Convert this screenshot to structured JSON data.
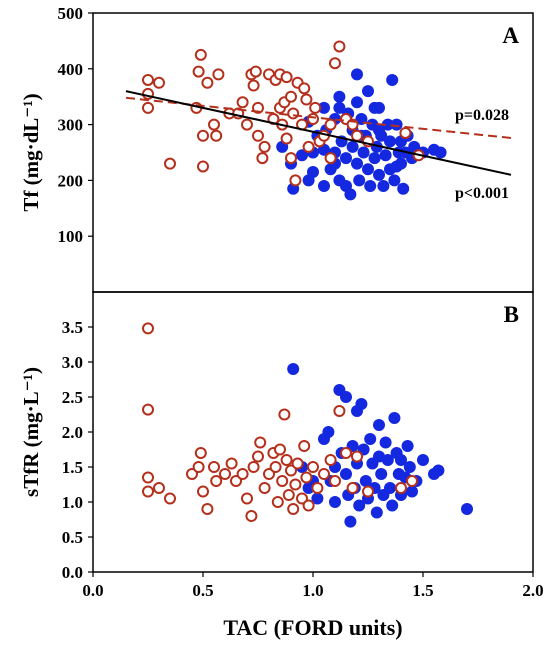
{
  "chart_data": [
    {
      "type": "scatter",
      "panel_label": "A",
      "ylabel": "Tf  (mg·dL⁻¹)",
      "xlim": [
        0.0,
        2.0
      ],
      "ylim": [
        0,
        500
      ],
      "y_ticks": [
        100,
        200,
        300,
        400,
        500
      ],
      "series": [
        {
          "color": "#1428e0",
          "marker": "filled-circle",
          "points": [
            [
              0.86,
              260
            ],
            [
              0.9,
              230
            ],
            [
              0.91,
              185
            ],
            [
              0.95,
              245
            ],
            [
              0.98,
              200
            ],
            [
              0.98,
              305
            ],
            [
              1.0,
              215
            ],
            [
              1.0,
              250
            ],
            [
              1.02,
              280
            ],
            [
              1.05,
              190
            ],
            [
              1.05,
              255
            ],
            [
              1.06,
              290
            ],
            [
              1.08,
              220
            ],
            [
              1.1,
              250
            ],
            [
              1.1,
              310
            ],
            [
              1.12,
              350
            ],
            [
              1.12,
              200
            ],
            [
              1.13,
              270
            ],
            [
              1.15,
              190
            ],
            [
              1.15,
              240
            ],
            [
              1.16,
              320
            ],
            [
              1.17,
              175
            ],
            [
              1.18,
              290
            ],
            [
              1.18,
              260
            ],
            [
              1.2,
              230
            ],
            [
              1.2,
              390
            ],
            [
              1.21,
              200
            ],
            [
              1.22,
              310
            ],
            [
              1.23,
              250
            ],
            [
              1.24,
              280
            ],
            [
              1.25,
              360
            ],
            [
              1.25,
              220
            ],
            [
              1.26,
              190
            ],
            [
              1.27,
              300
            ],
            [
              1.28,
              240
            ],
            [
              1.29,
              260
            ],
            [
              1.3,
              210
            ],
            [
              1.3,
              330
            ],
            [
              1.31,
              280
            ],
            [
              1.32,
              190
            ],
            [
              1.33,
              245
            ],
            [
              1.34,
              300
            ],
            [
              1.35,
              220
            ],
            [
              1.35,
              270
            ],
            [
              1.36,
              380
            ],
            [
              1.37,
              200
            ],
            [
              1.38,
              300
            ],
            [
              1.39,
              250
            ],
            [
              1.4,
              230
            ],
            [
              1.4,
              270
            ],
            [
              1.41,
              185
            ],
            [
              1.42,
              250
            ],
            [
              1.43,
              280
            ],
            [
              1.45,
              240
            ],
            [
              1.46,
              260
            ],
            [
              1.5,
              250
            ],
            [
              1.55,
              255
            ],
            [
              1.58,
              250
            ],
            [
              1.05,
              330
            ],
            [
              1.12,
              330
            ],
            [
              1.2,
              340
            ],
            [
              1.28,
              330
            ],
            [
              1.1,
              230
            ],
            [
              1.22,
              280
            ],
            [
              1.3,
              290
            ],
            [
              1.38,
              225
            ]
          ]
        },
        {
          "color": "#b5301c",
          "marker": "open-circle",
          "points": [
            [
              0.25,
              380
            ],
            [
              0.25,
              355
            ],
            [
              0.25,
              330
            ],
            [
              0.3,
              375
            ],
            [
              0.35,
              230
            ],
            [
              0.47,
              330
            ],
            [
              0.48,
              395
            ],
            [
              0.49,
              425
            ],
            [
              0.5,
              280
            ],
            [
              0.5,
              225
            ],
            [
              0.52,
              375
            ],
            [
              0.55,
              300
            ],
            [
              0.56,
              280
            ],
            [
              0.57,
              390
            ],
            [
              0.62,
              320
            ],
            [
              0.66,
              320
            ],
            [
              0.68,
              340
            ],
            [
              0.7,
              300
            ],
            [
              0.72,
              390
            ],
            [
              0.73,
              370
            ],
            [
              0.74,
              395
            ],
            [
              0.75,
              280
            ],
            [
              0.75,
              330
            ],
            [
              0.77,
              240
            ],
            [
              0.78,
              260
            ],
            [
              0.8,
              390
            ],
            [
              0.82,
              310
            ],
            [
              0.83,
              380
            ],
            [
              0.85,
              390
            ],
            [
              0.85,
              330
            ],
            [
              0.86,
              300
            ],
            [
              0.87,
              340
            ],
            [
              0.88,
              275
            ],
            [
              0.88,
              385
            ],
            [
              0.9,
              350
            ],
            [
              0.9,
              240
            ],
            [
              0.91,
              320
            ],
            [
              0.92,
              200
            ],
            [
              0.93,
              375
            ],
            [
              0.95,
              300
            ],
            [
              0.96,
              365
            ],
            [
              0.97,
              345
            ],
            [
              0.98,
              260
            ],
            [
              1.0,
              310
            ],
            [
              1.01,
              330
            ],
            [
              1.03,
              270
            ],
            [
              1.05,
              280
            ],
            [
              1.08,
              300
            ],
            [
              1.08,
              240
            ],
            [
              1.1,
              410
            ],
            [
              1.12,
              440
            ],
            [
              1.15,
              310
            ],
            [
              1.18,
              300
            ],
            [
              1.2,
              280
            ],
            [
              1.25,
              270
            ],
            [
              1.42,
              285
            ],
            [
              1.48,
              245
            ]
          ]
        }
      ],
      "fits": [
        {
          "label": "p=0.028",
          "color": "#b5301c",
          "style": "dashed",
          "x": [
            0.15,
            1.9
          ],
          "y": [
            348,
            276
          ]
        },
        {
          "label": "p<0.001",
          "color": "#000000",
          "style": "solid",
          "x": [
            0.15,
            1.9
          ],
          "y": [
            360,
            210
          ]
        }
      ]
    },
    {
      "type": "scatter",
      "panel_label": "B",
      "ylabel": "sTfR  (mg·L⁻¹)",
      "xlabel": "TAC (FORD units)",
      "xlim": [
        0.0,
        2.0
      ],
      "ylim": [
        0.0,
        4.0
      ],
      "x_ticks": [
        0.0,
        0.5,
        1.0,
        1.5,
        2.0
      ],
      "y_ticks": [
        0.0,
        0.5,
        1.0,
        1.5,
        2.0,
        2.5,
        3.0,
        3.5
      ],
      "series": [
        {
          "color": "#1428e0",
          "marker": "filled-circle",
          "points": [
            [
              0.91,
              2.9
            ],
            [
              0.95,
              1.5
            ],
            [
              0.98,
              1.2
            ],
            [
              1.0,
              1.3
            ],
            [
              1.02,
              1.05
            ],
            [
              1.05,
              1.9
            ],
            [
              1.07,
              2.0
            ],
            [
              1.08,
              1.3
            ],
            [
              1.1,
              1.5
            ],
            [
              1.1,
              1.0
            ],
            [
              1.12,
              2.6
            ],
            [
              1.13,
              1.7
            ],
            [
              1.15,
              2.5
            ],
            [
              1.15,
              1.4
            ],
            [
              1.16,
              1.1
            ],
            [
              1.17,
              0.72
            ],
            [
              1.18,
              1.8
            ],
            [
              1.19,
              1.2
            ],
            [
              1.2,
              2.3
            ],
            [
              1.2,
              1.55
            ],
            [
              1.21,
              0.95
            ],
            [
              1.22,
              2.4
            ],
            [
              1.23,
              1.75
            ],
            [
              1.24,
              1.3
            ],
            [
              1.25,
              1.05
            ],
            [
              1.26,
              1.9
            ],
            [
              1.27,
              1.55
            ],
            [
              1.28,
              1.2
            ],
            [
              1.29,
              0.85
            ],
            [
              1.3,
              2.1
            ],
            [
              1.3,
              1.65
            ],
            [
              1.31,
              1.4
            ],
            [
              1.32,
              1.1
            ],
            [
              1.33,
              1.85
            ],
            [
              1.34,
              1.6
            ],
            [
              1.35,
              1.2
            ],
            [
              1.36,
              0.95
            ],
            [
              1.37,
              2.2
            ],
            [
              1.38,
              1.7
            ],
            [
              1.39,
              1.4
            ],
            [
              1.4,
              1.1
            ],
            [
              1.4,
              1.6
            ],
            [
              1.42,
              1.35
            ],
            [
              1.43,
              1.8
            ],
            [
              1.44,
              1.5
            ],
            [
              1.45,
              1.15
            ],
            [
              1.47,
              1.3
            ],
            [
              1.5,
              1.6
            ],
            [
              1.55,
              1.4
            ],
            [
              1.57,
              1.45
            ],
            [
              1.7,
              0.9
            ]
          ]
        },
        {
          "color": "#b5301c",
          "marker": "open-circle",
          "points": [
            [
              0.25,
              3.48
            ],
            [
              0.25,
              2.32
            ],
            [
              0.25,
              1.35
            ],
            [
              0.25,
              1.15
            ],
            [
              0.3,
              1.2
            ],
            [
              0.35,
              1.05
            ],
            [
              0.45,
              1.4
            ],
            [
              0.48,
              1.5
            ],
            [
              0.49,
              1.7
            ],
            [
              0.5,
              1.15
            ],
            [
              0.52,
              0.9
            ],
            [
              0.55,
              1.5
            ],
            [
              0.56,
              1.3
            ],
            [
              0.6,
              1.4
            ],
            [
              0.63,
              1.55
            ],
            [
              0.65,
              1.3
            ],
            [
              0.68,
              1.4
            ],
            [
              0.7,
              1.05
            ],
            [
              0.72,
              0.8
            ],
            [
              0.73,
              1.5
            ],
            [
              0.75,
              1.65
            ],
            [
              0.76,
              1.85
            ],
            [
              0.78,
              1.2
            ],
            [
              0.8,
              1.4
            ],
            [
              0.82,
              1.7
            ],
            [
              0.83,
              1.5
            ],
            [
              0.84,
              1.0
            ],
            [
              0.85,
              1.75
            ],
            [
              0.86,
              1.3
            ],
            [
              0.87,
              2.25
            ],
            [
              0.88,
              1.6
            ],
            [
              0.89,
              1.1
            ],
            [
              0.9,
              1.45
            ],
            [
              0.91,
              0.9
            ],
            [
              0.92,
              1.25
            ],
            [
              0.93,
              1.55
            ],
            [
              0.95,
              1.05
            ],
            [
              0.96,
              1.8
            ],
            [
              0.97,
              1.35
            ],
            [
              0.98,
              0.95
            ],
            [
              1.0,
              1.5
            ],
            [
              1.02,
              1.2
            ],
            [
              1.05,
              1.4
            ],
            [
              1.08,
              1.6
            ],
            [
              1.1,
              1.3
            ],
            [
              1.12,
              2.3
            ],
            [
              1.15,
              1.7
            ],
            [
              1.18,
              1.2
            ],
            [
              1.2,
              1.65
            ],
            [
              1.25,
              1.15
            ],
            [
              1.4,
              1.2
            ],
            [
              1.45,
              1.3
            ]
          ]
        }
      ]
    }
  ]
}
